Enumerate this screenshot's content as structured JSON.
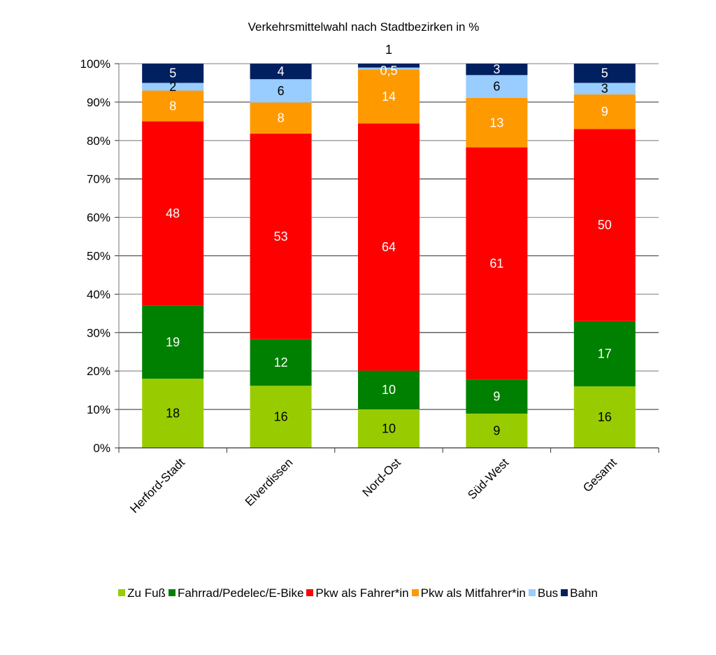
{
  "chart_data": {
    "type": "bar",
    "stacked": "percent",
    "title": "Verkehrsmittelwahl nach Stadtbezirken in %",
    "xlabel": "",
    "ylabel": "",
    "ylim": [
      0,
      100
    ],
    "yticks": [
      "0%",
      "10%",
      "20%",
      "30%",
      "40%",
      "50%",
      "60%",
      "70%",
      "80%",
      "90%",
      "100%"
    ],
    "grid": true,
    "legend_position": "bottom",
    "categories": [
      "Herford-Stadt",
      "Elverdissen",
      "Nord-Ost",
      "Süd-West",
      "Gesamt"
    ],
    "series": [
      {
        "name": "Zu Fuß",
        "color": "#99CC00",
        "label_color": "#000000",
        "values": [
          18,
          16,
          10,
          9,
          16
        ],
        "labels": [
          "18",
          "16",
          "10",
          "9",
          "16"
        ]
      },
      {
        "name": "Fahrrad/Pedelec/E-Bike",
        "color": "#008000",
        "label_color": "#FFFFFF",
        "values": [
          19,
          12,
          10,
          9,
          17
        ],
        "labels": [
          "19",
          "12",
          "10",
          "9",
          "17"
        ]
      },
      {
        "name": "Pkw als Fahrer*in",
        "color": "#FF0000",
        "label_color": "#FFFFFF",
        "values": [
          48,
          53,
          64,
          61,
          50
        ],
        "labels": [
          "48",
          "53",
          "64",
          "61",
          "50"
        ]
      },
      {
        "name": "Pkw als Mitfahrer*in",
        "color": "#FF9900",
        "label_color": "#FFFFFF",
        "values": [
          8,
          8,
          14,
          13,
          9
        ],
        "labels": [
          "8",
          "8",
          "14",
          "13",
          "9"
        ]
      },
      {
        "name": "Bus",
        "color": "#99CCFF",
        "label_color": "#000000",
        "values": [
          2,
          6,
          0.5,
          6,
          3
        ],
        "labels": [
          "2",
          "6",
          "0,5",
          "6",
          "3"
        ]
      },
      {
        "name": "Bahn",
        "color": "#002060",
        "label_color": "#FFFFFF",
        "values": [
          5,
          4,
          1,
          3,
          5
        ],
        "labels": [
          "5",
          "4",
          "1",
          "3",
          "5"
        ]
      }
    ]
  }
}
